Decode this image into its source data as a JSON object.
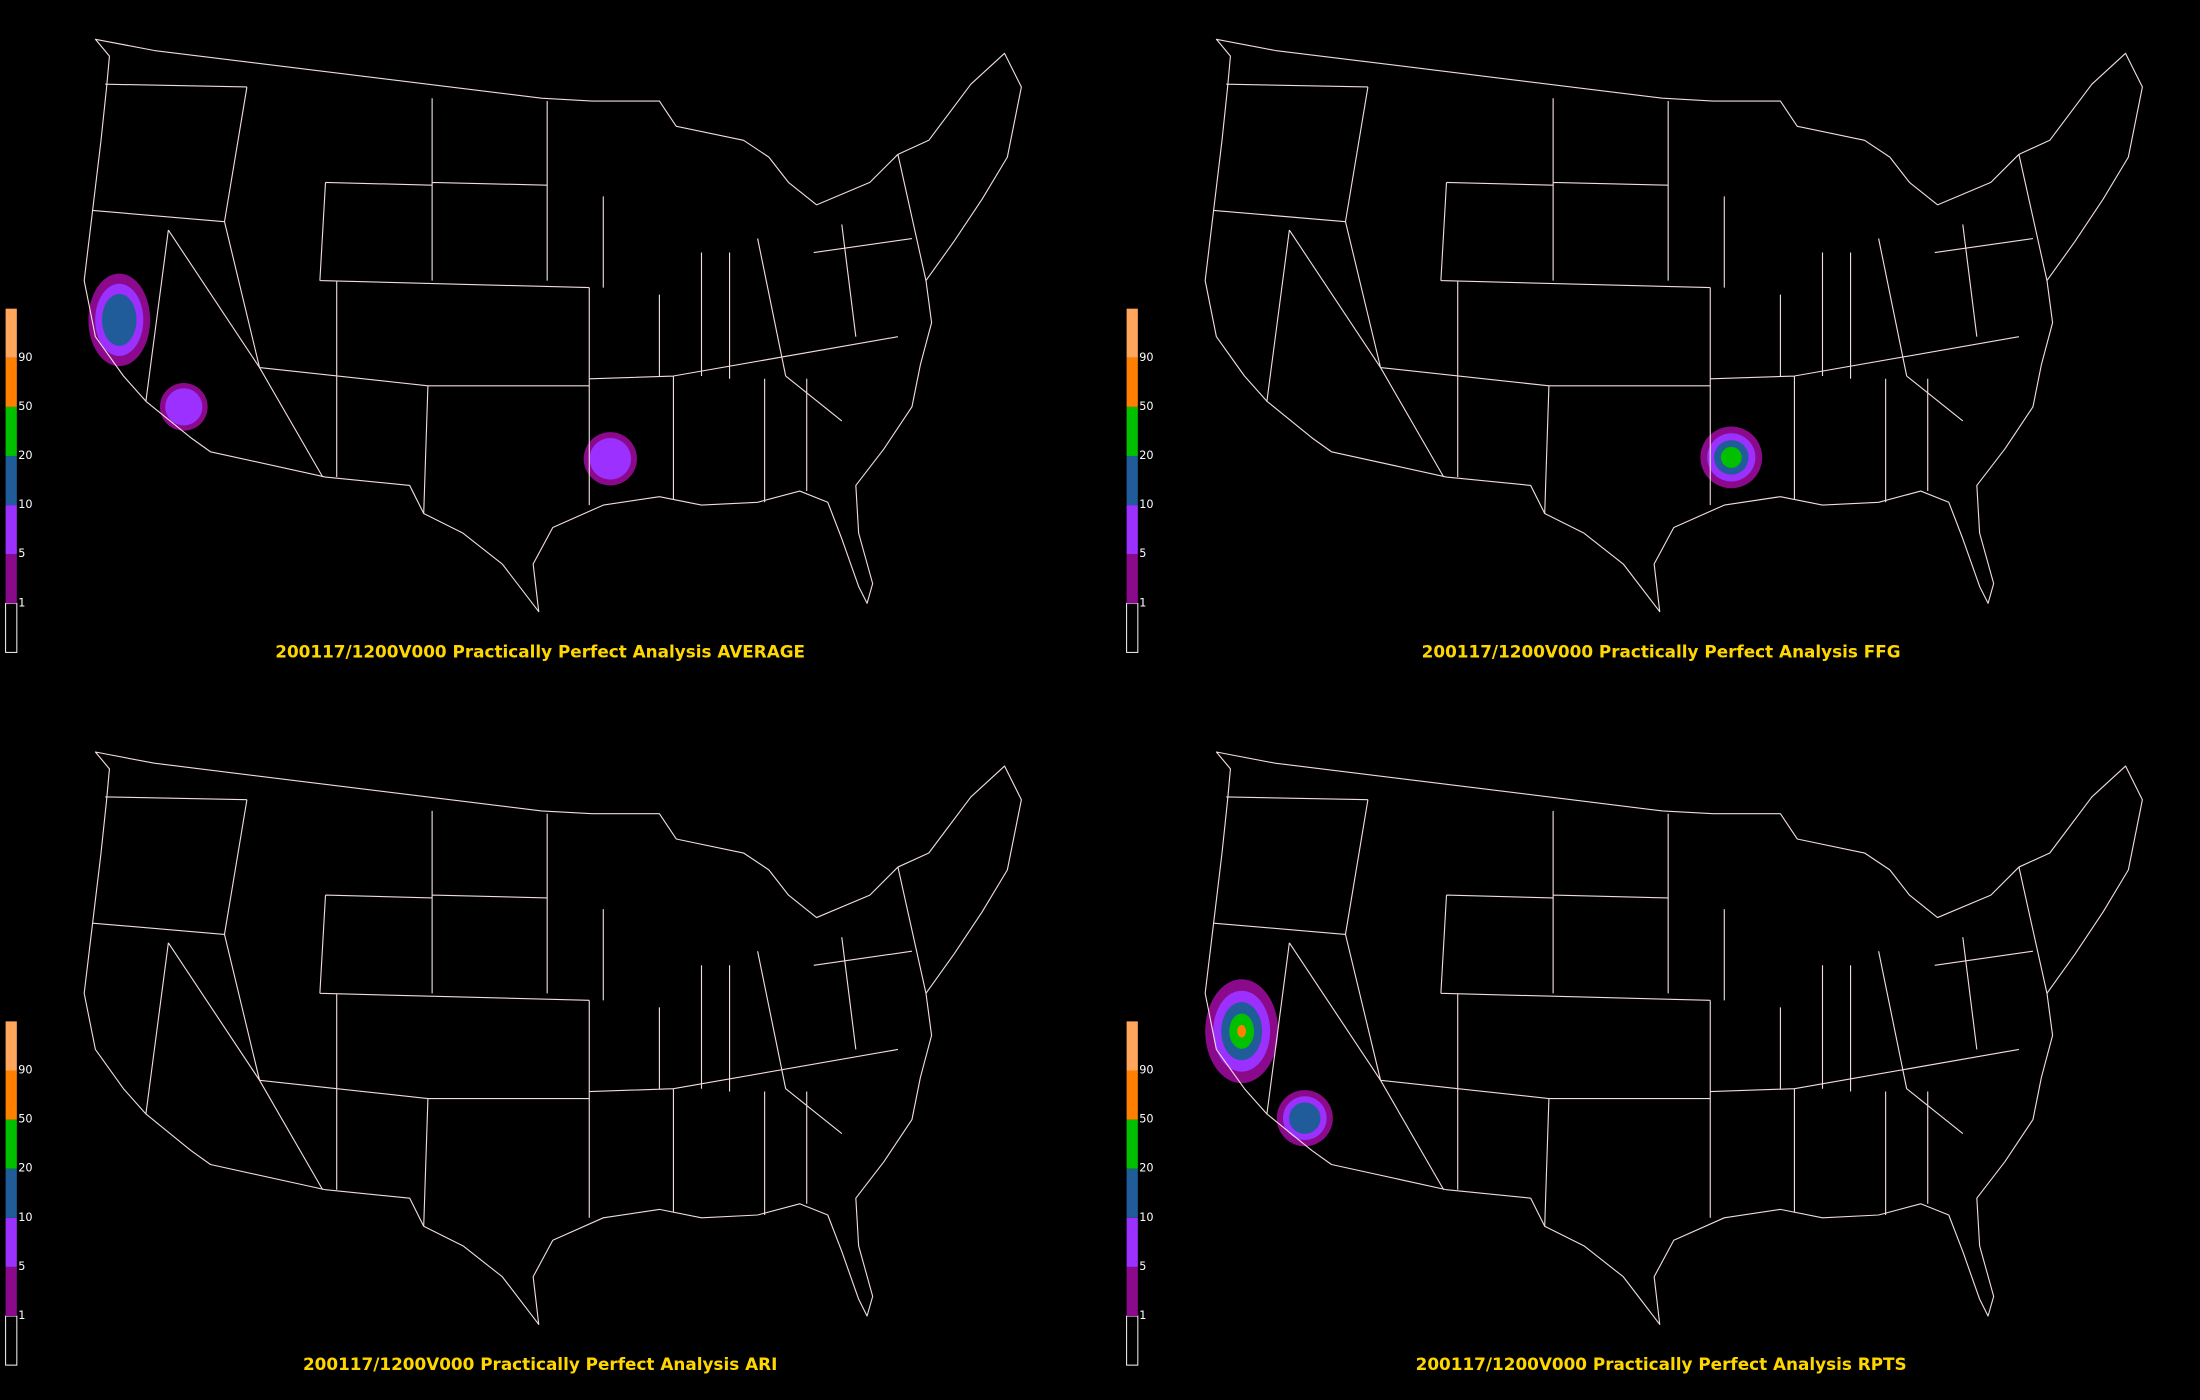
{
  "panels": [
    {
      "title": "200117/1200V000 Practically Perfect Analysis AVERAGE"
    },
    {
      "title": "200117/1200V000 Practically Perfect Analysis FFG"
    },
    {
      "title": "200117/1200V000 Practically Perfect Analysis ARI"
    },
    {
      "title": "200117/1200V000 Practically Perfect Analysis RPTS"
    }
  ],
  "legend": {
    "levels": [
      1,
      5,
      10,
      20,
      50,
      90
    ],
    "colors": [
      "#8b0a8b",
      "#9b30ff",
      "#1f5c99",
      "#00c000",
      "#ff8000",
      "#ffa65c"
    ]
  }
}
